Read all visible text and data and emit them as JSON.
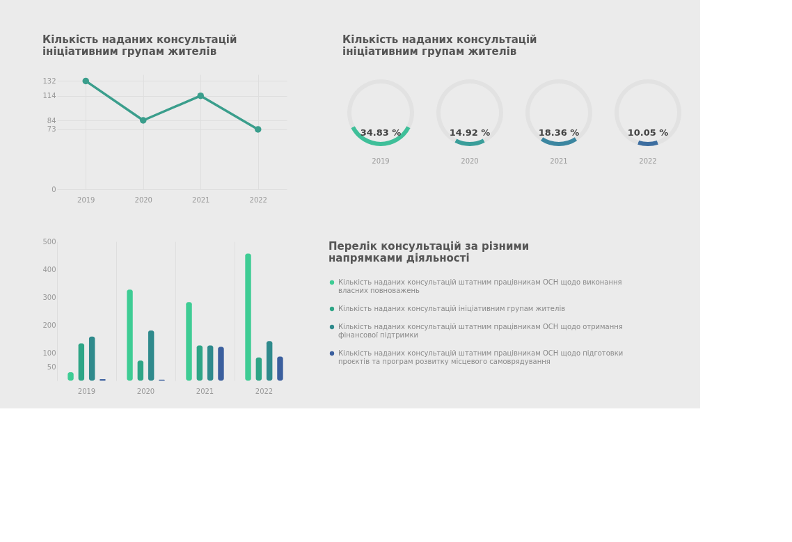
{
  "chart_data": [
    {
      "type": "line",
      "title": "Кількість наданих консультацій ініціативним групам жителів",
      "categories": [
        "2019",
        "2020",
        "2021",
        "2022"
      ],
      "series": [
        {
          "color": "#3a9e8c",
          "values": [
            132,
            84,
            114,
            73
          ]
        }
      ],
      "ylim": [
        0,
        140
      ],
      "yticks": [
        0,
        73,
        84,
        114,
        132
      ],
      "grid": true,
      "marker": "circle",
      "line_style": "solid"
    },
    {
      "type": "donut",
      "title": "Кількість наданих консультацій ініціативним групам жителів",
      "categories": [
        "2019",
        null
      ],
      "values": [
        34.83,
        65.17
      ],
      "colors": [
        "#3fbf99",
        "#e2e2e2"
      ],
      "value_labels": [
        "34.83 %",
        null
      ]
    },
    {
      "type": "donut",
      "categories": [
        "2020",
        null
      ],
      "values": [
        14.92,
        85.08
      ],
      "colors": [
        "#3a9e9a",
        "#e2e2e2"
      ],
      "value_labels": [
        "14.92 %",
        null
      ]
    },
    {
      "type": "donut",
      "categories": [
        "2021",
        null
      ],
      "values": [
        18.36,
        81.64
      ],
      "colors": [
        "#3c86a0",
        "#e2e2e2"
      ],
      "value_labels": [
        "18.36 %",
        null
      ]
    },
    {
      "type": "donut",
      "categories": [
        "2022",
        null
      ],
      "values": [
        10.05,
        89.95
      ],
      "colors": [
        "#3d6ea0",
        "#e2e2e2"
      ],
      "value_labels": [
        "10.05 %",
        null
      ]
    },
    {
      "type": "bar",
      "legend_title": "Перелік консультацій за різними напрямками діяльності",
      "categories": [
        "2019",
        "2020",
        "2021",
        "2022"
      ],
      "series": [
        {
          "name": "Кількість наданих консультацій штатним працівникам ОСН щодо виконання власних повноважень",
          "color": "#3ecc94",
          "values": [
            30,
            327,
            282,
            456
          ]
        },
        {
          "name": "Кількість наданих консультацій ініціативним групам жителів",
          "color": "#2ea586",
          "values": [
            134,
            72,
            126,
            83
          ]
        },
        {
          "name": "Кількість наданих консультацій штатним працівникам ОСН щодо отримання фінансової підтримки",
          "color": "#2f8a8c",
          "values": [
            158,
            180,
            126,
            142
          ]
        },
        {
          "name": "Кількість наданих консультацій штатним працівникам ОСН щодо підготовки проєктів та програм розвитку місцевого самоврядування",
          "color": "#3b5f9e",
          "values": [
            5,
            3,
            121,
            86
          ]
        }
      ],
      "ylim": [
        0,
        500
      ],
      "yticks": [
        50,
        100,
        200,
        300,
        400,
        500
      ],
      "grid": "x",
      "legend": "right"
    }
  ]
}
